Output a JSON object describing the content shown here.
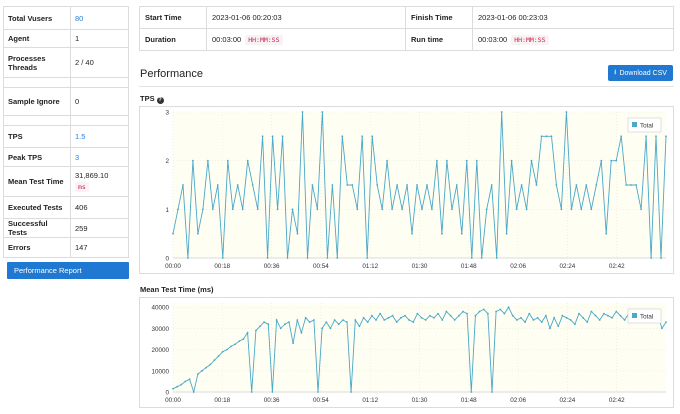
{
  "stats": [
    {
      "key": "Total Vusers",
      "value": "80",
      "link": true
    },
    {
      "key": "Agent",
      "value": "1"
    },
    {
      "key": "Processes Threads",
      "value": "2 / 40"
    },
    {
      "key": "",
      "value": ""
    },
    {
      "key": "Sample Ignore",
      "value": "0"
    },
    {
      "key": "",
      "value": ""
    },
    {
      "key": "TPS",
      "value": "1.5",
      "link": true
    },
    {
      "key": "Peak TPS",
      "value": "3",
      "link": true
    },
    {
      "key": "Mean Test Time",
      "value": "31,869.10",
      "unit": "ms"
    },
    {
      "key": "Executed Tests",
      "value": "406"
    },
    {
      "key": "Successful Tests",
      "value": "259"
    },
    {
      "key": "Errors",
      "value": "147"
    }
  ],
  "performance_report_label": "Performance Report",
  "summary": {
    "start_label": "Start Time",
    "start_value": "2023-01-06 00:20:03",
    "finish_label": "Finish Time",
    "finish_value": "2023-01-06 00:23:03",
    "duration_label": "Duration",
    "duration_value": "00:03:00",
    "duration_format": "HH:MM:SS",
    "runtime_label": "Run time",
    "runtime_value": "00:03:00",
    "runtime_format": "HH:MM:SS"
  },
  "performance_title": "Performance",
  "download_csv_label": "Download CSV",
  "colors": {
    "accent": "#1f78d1",
    "series": "#4aa8c8",
    "plot_bg": "#fffef3",
    "badge_text": "#c7254e"
  },
  "chart_data": [
    {
      "type": "line",
      "title": "TPS",
      "legend": "Total",
      "legend_position": "top-right",
      "ylim": [
        0,
        3
      ],
      "yticks": [
        "0",
        "1",
        "2",
        "3"
      ],
      "xticks": [
        "00:00",
        "00:18",
        "00:36",
        "00:54",
        "01:12",
        "01:30",
        "01:48",
        "02:06",
        "02:24",
        "02:42"
      ],
      "xmax_seconds": 180,
      "series": [
        {
          "name": "Total",
          "values": [
            0.5,
            1,
            1.5,
            0,
            2,
            0.5,
            1,
            2,
            1,
            1.5,
            0,
            2,
            1,
            1.5,
            1,
            2,
            1.5,
            1,
            2.5,
            0,
            2.5,
            1,
            2.5,
            0,
            1,
            0.5,
            3,
            0,
            1.5,
            1,
            3,
            0,
            1.5,
            0,
            2.5,
            1.5,
            1.5,
            1,
            2.5,
            0,
            2.5,
            1.5,
            1,
            2,
            1,
            1.5,
            1,
            1.5,
            0.5,
            1.5,
            1,
            1.5,
            1,
            2,
            0.5,
            2,
            1,
            1.5,
            0.5,
            2,
            0,
            2,
            0,
            1,
            1.5,
            0,
            3,
            0.5,
            2,
            1,
            1.5,
            1,
            2,
            1.5,
            2.5,
            2.5,
            2.5,
            1.5,
            1,
            3,
            1,
            1.5,
            1,
            1.5,
            1,
            1.5,
            2,
            0.5,
            2,
            2,
            2.5,
            1.5,
            1.5,
            1.5,
            1,
            2.5,
            0,
            2.5,
            0,
            2.5
          ]
        }
      ]
    },
    {
      "type": "line",
      "title": "Mean Test Time (ms)",
      "legend": "Total",
      "legend_position": "top-right",
      "ylim": [
        0,
        42000
      ],
      "yticks": [
        "0",
        "10000",
        "20000",
        "30000",
        "40000"
      ],
      "xticks": [
        "00:00",
        "00:18",
        "00:36",
        "00:54",
        "01:12",
        "01:30",
        "01:48",
        "02:06",
        "02:24",
        "02:42"
      ],
      "xmax_seconds": 180,
      "series": [
        {
          "name": "Total",
          "values": [
            1500,
            2500,
            3500,
            5000,
            6000,
            0,
            8500,
            10000,
            11500,
            13000,
            15000,
            17000,
            19000,
            20000,
            21500,
            22500,
            24000,
            25000,
            28000,
            0,
            29000,
            31000,
            33000,
            32000,
            0,
            34000,
            30000,
            32000,
            33000,
            23000,
            34000,
            28000,
            35000,
            33000,
            34000,
            0,
            30000,
            33000,
            30000,
            34000,
            32000,
            34000,
            33000,
            0,
            34000,
            31000,
            35000,
            33000,
            36000,
            34000,
            37000,
            34000,
            35000,
            36000,
            33000,
            35000,
            36000,
            34000,
            33000,
            37000,
            35000,
            34000,
            36000,
            35000,
            37000,
            34000,
            38000,
            36000,
            34000,
            36000,
            38000,
            37000,
            0,
            36000,
            38000,
            39000,
            37000,
            0,
            38000,
            39000,
            37000,
            40000,
            36000,
            34000,
            35000,
            33000,
            37000,
            34000,
            35000,
            33000,
            36000,
            30000,
            35000,
            31000,
            36000,
            35000,
            34000,
            32000,
            37000,
            35000,
            33000,
            38000,
            36000,
            34000,
            37000,
            36000,
            35000,
            38000,
            36000,
            34000,
            37000,
            35000,
            36000,
            33000,
            34000,
            35000,
            36000,
            37000,
            30000,
            33000
          ]
        }
      ]
    }
  ]
}
